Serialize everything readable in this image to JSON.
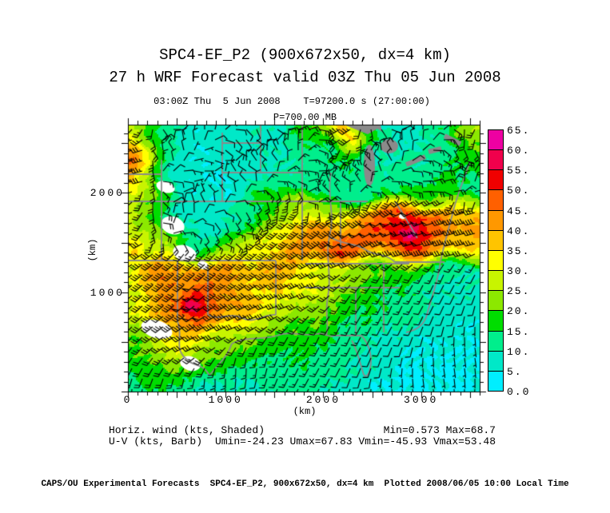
{
  "header": {
    "title1": "SPC4-EF_P2 (900x672x50, dx=4 km)",
    "title2": "27 h WRF Forecast valid 03Z Thu 05 Jun 2008",
    "valid_line": "03:00Z Thu  5 Jun 2008    T=97200.0 s (27:00:00)",
    "level_line": "P=700.00 MB"
  },
  "legend": {
    "field_label": "Horiz. wind (kts, Shaded)",
    "field_minmax": "Min=0.573 Max=68.7",
    "barb_label": "U-V (kts, Barb)",
    "uv_minmax": "Umin=-24.23 Umax=67.83 Vmin=-45.93 Vmax=53.48"
  },
  "footer": {
    "credit": "CAPS/OU Experimental Forecasts  SPC4-EF_P2, 900x672x50, dx=4 km  Plotted 2008/06/05 10:00 Local Time"
  },
  "chart_data": {
    "type": "heatmap",
    "title": "Horizontal wind speed (kts, shaded) with wind barbs at P=700.00 MB",
    "xlabel": "(km)",
    "ylabel": "(km)",
    "x_tick_values": [
      0,
      1000,
      2000,
      3000
    ],
    "x_tick_labels": [
      "0",
      "1000",
      "2000",
      "3000"
    ],
    "y_tick_values": [
      1000,
      2000
    ],
    "y_tick_labels": [
      "1000",
      "2000"
    ],
    "x_range_km": [
      0,
      3600
    ],
    "y_range_km": [
      0,
      2688
    ],
    "minor_tick_step_km": 100,
    "major_tick_step_km": 500,
    "grid": false,
    "colorbar": {
      "tick_labels": [
        "0.0",
        "5.",
        "10.",
        "15.",
        "20.",
        "25.",
        "30.",
        "35.",
        "40.",
        "45.",
        "50.",
        "55.",
        "60.",
        "65."
      ],
      "level_step": 5,
      "colors": [
        "#00eeff",
        "#00e8c8",
        "#00ee8c",
        "#00dd00",
        "#8ce800",
        "#c8f400",
        "#ffff00",
        "#ffc400",
        "#ff9800",
        "#ff6000",
        "#f00000",
        "#f0004c",
        "#ee00a2"
      ]
    },
    "stats": {
      "min": 0.573,
      "max": 68.7,
      "umin": -24.23,
      "umax": 67.83,
      "vmin": -45.93,
      "vmax": 53.48
    },
    "wind_speed_grid_kts": [
      [
        22,
        20,
        15,
        10,
        8,
        8,
        8,
        10,
        10,
        8,
        15,
        18,
        22,
        42,
        20,
        10,
        8,
        10,
        12,
        15,
        22,
        25
      ],
      [
        38,
        25,
        12,
        8,
        6,
        6,
        8,
        8,
        8,
        8,
        12,
        15,
        18,
        35,
        15,
        10,
        8,
        8,
        10,
        12,
        18,
        22
      ],
      [
        46,
        32,
        15,
        8,
        6,
        6,
        6,
        8,
        8,
        10,
        12,
        12,
        15,
        18,
        12,
        10,
        10,
        10,
        12,
        15,
        18,
        20
      ],
      [
        44,
        30,
        15,
        8,
        6,
        5,
        6,
        8,
        10,
        12,
        12,
        12,
        12,
        12,
        12,
        12,
        12,
        12,
        15,
        18,
        15,
        15
      ],
      [
        25,
        20,
        15,
        8,
        6,
        6,
        6,
        10,
        15,
        20,
        25,
        15,
        12,
        12,
        12,
        15,
        15,
        18,
        20,
        22,
        15,
        12
      ],
      [
        30,
        22,
        18,
        10,
        8,
        8,
        10,
        12,
        18,
        25,
        28,
        25,
        22,
        30,
        40,
        45,
        48,
        52,
        45,
        38,
        32,
        38
      ],
      [
        32,
        25,
        20,
        12,
        10,
        10,
        12,
        15,
        25,
        32,
        38,
        40,
        42,
        45,
        50,
        52,
        55,
        63,
        52,
        45,
        40,
        42
      ],
      [
        35,
        28,
        25,
        18,
        15,
        18,
        22,
        28,
        35,
        40,
        42,
        45,
        48,
        50,
        45,
        42,
        45,
        48,
        42,
        38,
        35,
        30
      ],
      [
        28,
        35,
        42,
        40,
        42,
        40,
        38,
        35,
        38,
        40,
        38,
        32,
        28,
        25,
        22,
        20,
        18,
        18,
        15,
        12,
        12,
        10
      ],
      [
        30,
        38,
        45,
        42,
        48,
        45,
        40,
        38,
        35,
        38,
        35,
        30,
        25,
        22,
        20,
        18,
        15,
        15,
        12,
        10,
        10,
        8
      ],
      [
        28,
        35,
        42,
        45,
        62,
        48,
        42,
        38,
        32,
        30,
        28,
        25,
        22,
        18,
        18,
        15,
        12,
        12,
        10,
        8,
        8,
        8
      ],
      [
        25,
        30,
        38,
        42,
        48,
        42,
        35,
        30,
        28,
        25,
        22,
        20,
        18,
        15,
        15,
        12,
        10,
        10,
        8,
        8,
        6,
        6
      ],
      [
        20,
        25,
        30,
        32,
        35,
        30,
        25,
        22,
        20,
        18,
        18,
        15,
        15,
        12,
        12,
        10,
        8,
        8,
        6,
        6,
        5,
        5
      ],
      [
        18,
        20,
        22,
        25,
        25,
        22,
        18,
        15,
        15,
        15,
        15,
        15,
        12,
        12,
        10,
        8,
        6,
        5,
        5,
        5,
        4,
        4
      ],
      [
        15,
        18,
        18,
        18,
        18,
        15,
        12,
        10,
        12,
        12,
        12,
        12,
        12,
        10,
        8,
        6,
        5,
        4,
        4,
        4,
        4,
        5
      ],
      [
        12,
        15,
        15,
        12,
        10,
        8,
        8,
        8,
        10,
        12,
        12,
        10,
        10,
        8,
        6,
        5,
        4,
        4,
        4,
        5,
        5,
        6
      ]
    ]
  }
}
